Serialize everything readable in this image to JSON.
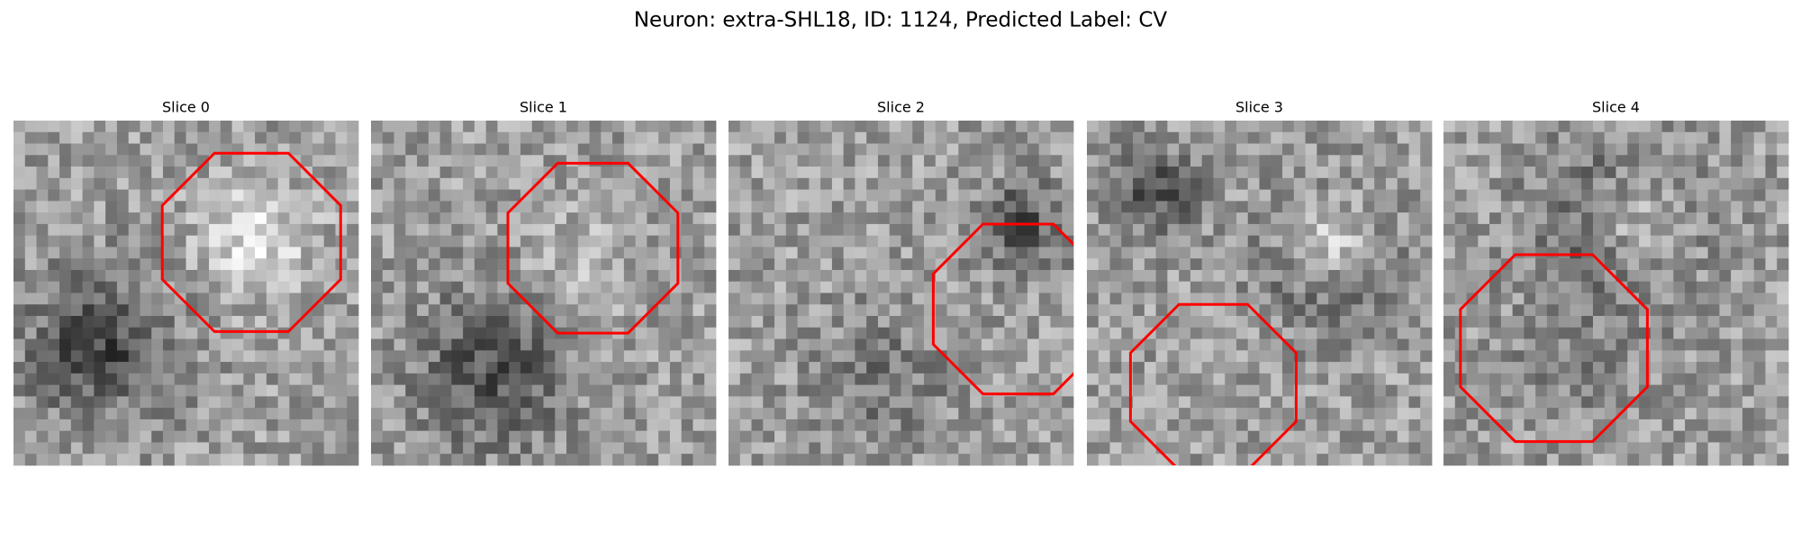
{
  "header": {
    "title": "Neuron: extra-SHL18, ID: 1124, Predicted Label: CV"
  },
  "panels": [
    {
      "title": "Slice 0"
    },
    {
      "title": "Slice 1"
    },
    {
      "title": "Slice 2"
    },
    {
      "title": "Slice 3"
    },
    {
      "title": "Slice 4"
    }
  ]
}
